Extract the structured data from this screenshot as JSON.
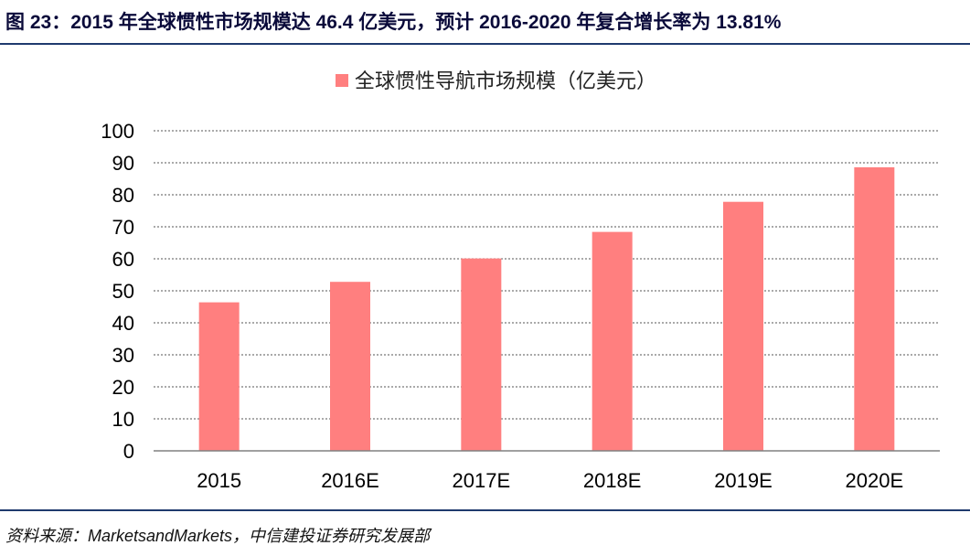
{
  "figure": {
    "title": "图 23：2015 年全球惯性市场规模达 46.4 亿美元，预计 2016-2020 年复合增长率为 13.81%",
    "source": "资料来源：MarketsandMarkets，中信建投证券研究发展部"
  },
  "chart_data": {
    "type": "bar",
    "categories": [
      "2015",
      "2016E",
      "2017E",
      "2018E",
      "2019E",
      "2020E"
    ],
    "series": [
      {
        "name": "全球惯性导航市场规模（亿美元）",
        "values": [
          46.4,
          52.8,
          60.1,
          68.4,
          77.8,
          88.6
        ],
        "color": "#ff7f7f"
      }
    ],
    "ylim": [
      0,
      100
    ],
    "yticks": [
      0,
      10,
      20,
      30,
      40,
      50,
      60,
      70,
      80,
      90,
      100
    ],
    "grid": "horizontal-dashed",
    "legend": "top-center"
  }
}
